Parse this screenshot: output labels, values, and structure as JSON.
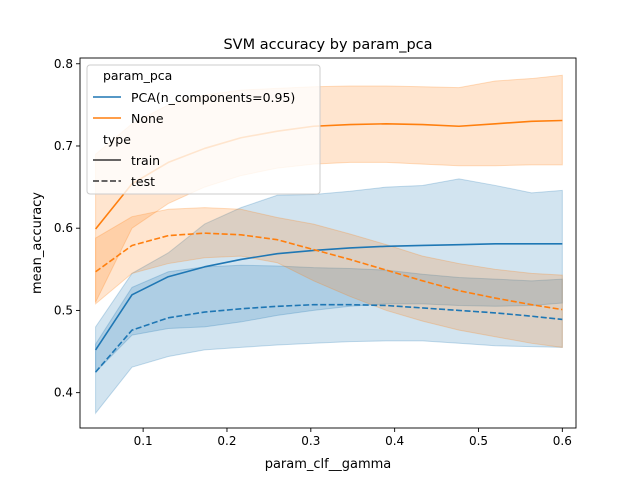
{
  "chart_data": {
    "type": "line",
    "title": "SVM accuracy by param_pca",
    "xlabel": "param_clf__gamma",
    "ylabel": "mean_accuracy",
    "xlim": [
      0.0247,
      0.6163
    ],
    "ylim": [
      0.357,
      0.807
    ],
    "xticks": [
      0.1,
      0.2,
      0.3,
      0.4,
      0.5,
      0.6
    ],
    "xtick_labels": [
      "0.1",
      "0.2",
      "0.3",
      "0.4",
      "0.5",
      "0.6"
    ],
    "yticks": [
      0.4,
      0.5,
      0.6,
      0.7,
      0.8
    ],
    "ytick_labels": [
      "0.4",
      "0.5",
      "0.6",
      "0.7",
      "0.8"
    ],
    "grid": false,
    "legend": {
      "placement": "top-left",
      "hue_title": "param_pca",
      "style_title": "type",
      "hue_entries": [
        {
          "label": "PCA(n_components=0.95)",
          "color": "#1f77b4"
        },
        {
          "label": "None",
          "color": "#ff7f0e"
        }
      ],
      "style_entries": [
        {
          "label": "train",
          "dash": "solid"
        },
        {
          "label": "test",
          "dash": "dashed"
        }
      ]
    },
    "x": [
      0.0433,
      0.0867,
      0.13,
      0.1733,
      0.2167,
      0.26,
      0.3033,
      0.3467,
      0.39,
      0.4333,
      0.4767,
      0.52,
      0.5633,
      0.6
    ],
    "series": [
      {
        "param_pca": "PCA(n_components=0.95)",
        "type": "train",
        "color": "#1f77b4",
        "dash": "solid",
        "values": [
          0.452,
          0.519,
          0.541,
          0.553,
          0.562,
          0.569,
          0.573,
          0.576,
          0.578,
          0.579,
          0.58,
          0.581,
          0.581,
          0.581
        ],
        "ci_low": [
          0.425,
          0.47,
          0.478,
          0.48,
          0.486,
          0.494,
          0.5,
          0.505,
          0.508,
          0.508,
          0.506,
          0.505,
          0.506,
          0.509
        ],
        "ci_high": [
          0.48,
          0.545,
          0.57,
          0.605,
          0.625,
          0.64,
          0.641,
          0.645,
          0.65,
          0.652,
          0.66,
          0.652,
          0.643,
          0.646
        ]
      },
      {
        "param_pca": "PCA(n_components=0.95)",
        "type": "test",
        "color": "#1f77b4",
        "dash": "dashed",
        "values": [
          0.425,
          0.476,
          0.491,
          0.498,
          0.502,
          0.505,
          0.507,
          0.507,
          0.506,
          0.503,
          0.5,
          0.497,
          0.493,
          0.489
        ],
        "ci_low": [
          0.375,
          0.431,
          0.444,
          0.452,
          0.455,
          0.458,
          0.46,
          0.462,
          0.463,
          0.463,
          0.46,
          0.457,
          0.456,
          0.455
        ],
        "ci_high": [
          0.459,
          0.528,
          0.547,
          0.553,
          0.555,
          0.554,
          0.552,
          0.551,
          0.549,
          0.544,
          0.54,
          0.538,
          0.536,
          0.538
        ]
      },
      {
        "param_pca": "None",
        "type": "train",
        "color": "#ff7f0e",
        "dash": "solid",
        "values": [
          0.599,
          0.654,
          0.68,
          0.697,
          0.71,
          0.718,
          0.724,
          0.726,
          0.727,
          0.726,
          0.724,
          0.727,
          0.73,
          0.731
        ],
        "ci_low": [
          0.51,
          0.6,
          0.63,
          0.65,
          0.664,
          0.673,
          0.678,
          0.68,
          0.68,
          0.678,
          0.676,
          0.676,
          0.677,
          0.677
        ],
        "ci_high": [
          0.69,
          0.727,
          0.75,
          0.762,
          0.768,
          0.77,
          0.772,
          0.773,
          0.773,
          0.772,
          0.771,
          0.779,
          0.782,
          0.786
        ]
      },
      {
        "param_pca": "None",
        "type": "test",
        "color": "#ff7f0e",
        "dash": "dashed",
        "values": [
          0.547,
          0.579,
          0.591,
          0.594,
          0.592,
          0.586,
          0.574,
          0.562,
          0.549,
          0.536,
          0.524,
          0.515,
          0.507,
          0.501
        ],
        "ci_low": [
          0.508,
          0.545,
          0.557,
          0.564,
          0.566,
          0.558,
          0.536,
          0.517,
          0.5,
          0.487,
          0.476,
          0.468,
          0.46,
          0.455
        ],
        "ci_high": [
          0.588,
          0.614,
          0.623,
          0.625,
          0.623,
          0.613,
          0.605,
          0.593,
          0.58,
          0.566,
          0.557,
          0.55,
          0.545,
          0.543
        ]
      }
    ]
  }
}
